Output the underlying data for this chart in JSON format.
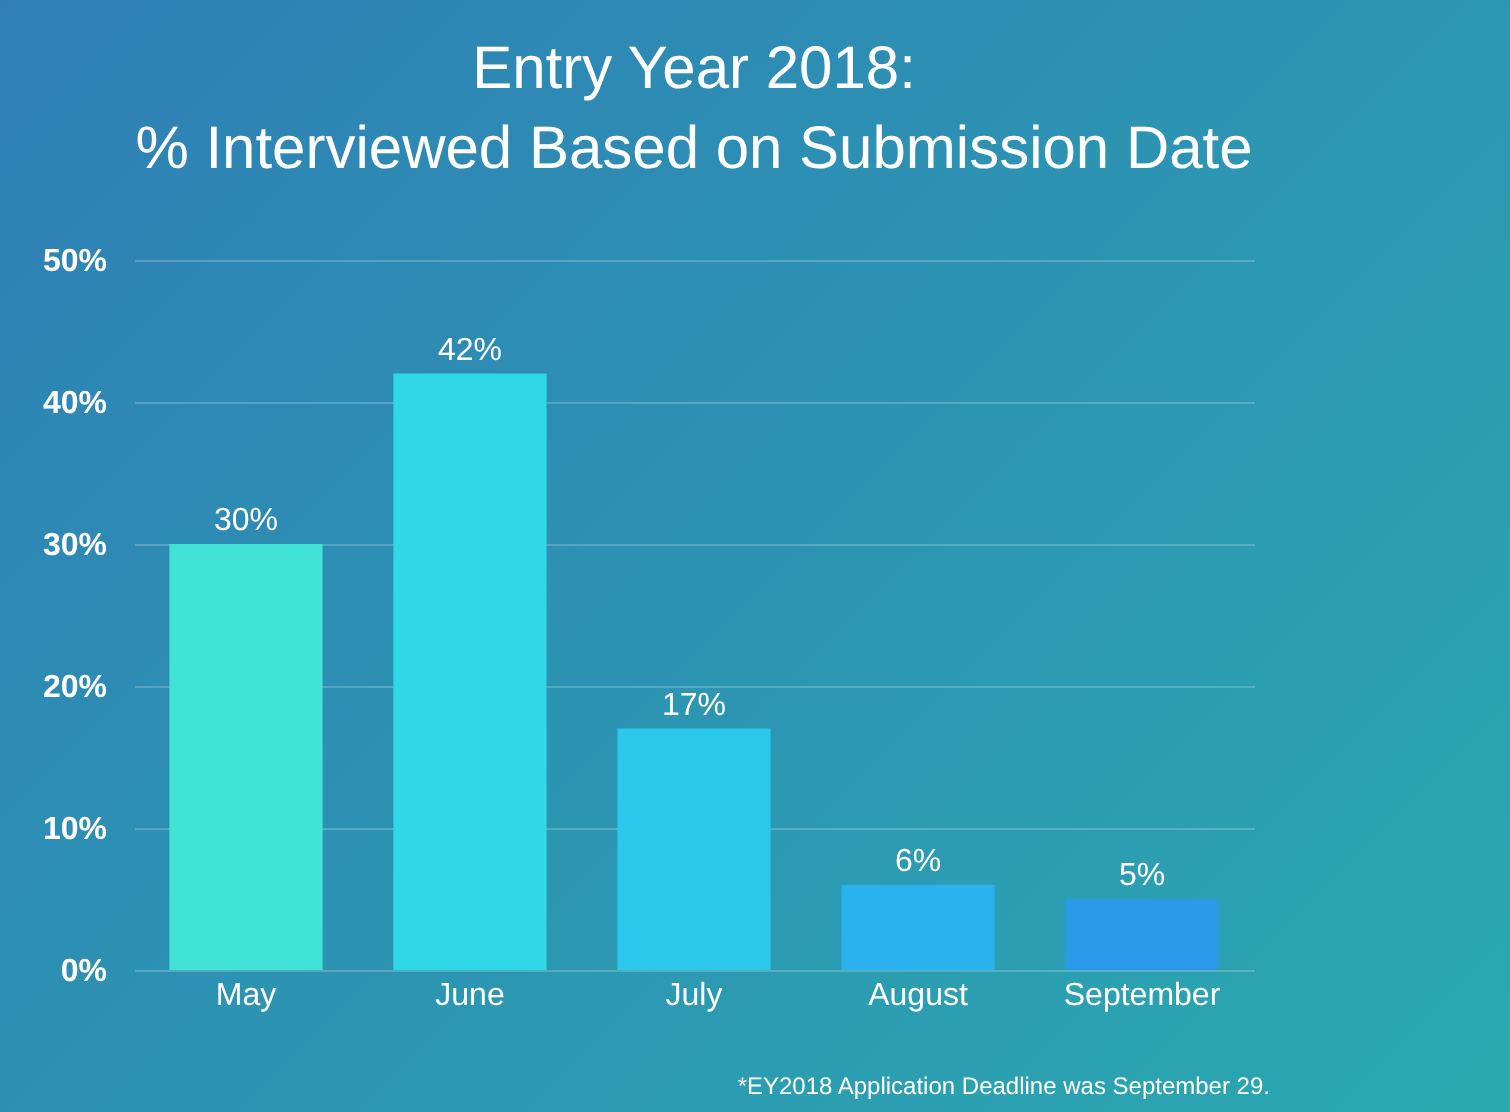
{
  "chart_data": {
    "type": "bar",
    "title": [
      "Entry Year 2018:",
      "% Interviewed Based on Submission Date"
    ],
    "categories": [
      "May",
      "June",
      "July",
      "August",
      "September"
    ],
    "values": [
      30,
      42,
      17,
      6,
      5
    ],
    "value_labels": [
      "30%",
      "42%",
      "17%",
      "6%",
      "5%"
    ],
    "colors": [
      "#40e3d6",
      "#2ed8e4",
      "#2cc8ec",
      "#29b2ee",
      "#2a9ae8"
    ],
    "ylim": [
      0,
      50
    ],
    "yticks": [
      {
        "value": 0,
        "label": "0%"
      },
      {
        "value": 10,
        "label": "10%"
      },
      {
        "value": 20,
        "label": "20%"
      },
      {
        "value": 30,
        "label": "30%"
      },
      {
        "value": 40,
        "label": "40%"
      },
      {
        "value": 50,
        "label": "50%"
      }
    ],
    "grid": "y",
    "annotations": [
      "*EY2018 Application Deadline was September 29."
    ]
  }
}
